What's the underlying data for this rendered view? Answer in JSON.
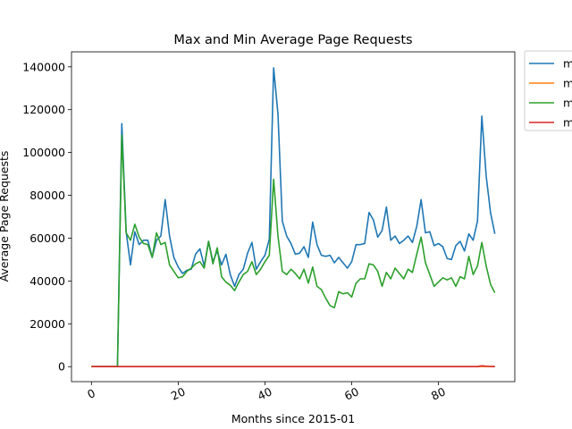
{
  "chart_data": {
    "type": "line",
    "title": "Max and Min Average Page Requests",
    "xlabel": "Months since 2015-01",
    "ylabel": "Average Page Requests",
    "xlim": [
      -4.6,
      97.6
    ],
    "ylim": [
      -7000,
      147000
    ],
    "xticks": [
      0,
      20,
      40,
      60,
      80
    ],
    "yticks": [
      0,
      20000,
      40000,
      60000,
      80000,
      100000,
      120000,
      140000
    ],
    "grid": false,
    "legend_position": "upper-right-outside",
    "series": [
      {
        "name": "m",
        "color": "#1f77b4",
        "values": [
          0,
          0,
          0,
          0,
          0,
          0,
          0,
          113500,
          63000,
          47500,
          63000,
          57000,
          59000,
          59000,
          51000,
          59000,
          61000,
          78000,
          61000,
          51000,
          46500,
          43500,
          45000,
          45500,
          52500,
          55000,
          47000,
          58500,
          49000,
          54000,
          47500,
          52500,
          43000,
          37500,
          43000,
          45500,
          53000,
          58000,
          45500,
          49000,
          52000,
          59500,
          139500,
          118000,
          68000,
          61000,
          57500,
          52500,
          53000,
          56000,
          51000,
          67500,
          57000,
          52000,
          51500,
          52000,
          48500,
          51000,
          48500,
          46000,
          49000,
          57000,
          57000,
          57500,
          72000,
          68500,
          60500,
          63500,
          74500,
          59000,
          61000,
          57500,
          59000,
          61000,
          58000,
          65500,
          78000,
          62500,
          63000,
          56500,
          57500,
          56000,
          50500,
          50000,
          56500,
          58500,
          54000,
          62000,
          59000,
          68000,
          117000,
          89000,
          72000,
          62000
        ]
      },
      {
        "name": "m",
        "color": "#ff7f0e",
        "values": [
          0,
          0,
          0,
          0,
          0,
          0,
          0,
          40,
          40,
          40,
          40,
          40,
          40,
          40,
          40,
          40,
          40,
          40,
          40,
          40,
          40,
          40,
          40,
          40,
          40,
          40,
          40,
          40,
          40,
          40,
          40,
          40,
          40,
          40,
          40,
          40,
          40,
          40,
          40,
          40,
          40,
          40,
          40,
          40,
          40,
          40,
          40,
          40,
          40,
          40,
          40,
          40,
          40,
          40,
          40,
          40,
          40,
          40,
          40,
          40,
          40,
          40,
          40,
          40,
          40,
          40,
          40,
          40,
          40,
          40,
          40,
          40,
          40,
          40,
          40,
          40,
          40,
          40,
          40,
          40,
          40,
          40,
          40,
          40,
          40,
          40,
          40,
          40,
          40,
          40,
          40,
          40,
          40,
          40
        ]
      },
      {
        "name": "m",
        "color": "#2ca02c",
        "values": [
          0,
          0,
          0,
          0,
          0,
          0,
          0,
          108000,
          62500,
          59000,
          66500,
          60500,
          57500,
          57000,
          51000,
          62500,
          57000,
          58000,
          47500,
          44500,
          41500,
          42000,
          44500,
          46000,
          48000,
          49000,
          46000,
          58500,
          48000,
          55500,
          42000,
          39500,
          38000,
          35500,
          39500,
          43000,
          44500,
          49000,
          43000,
          45500,
          49000,
          52000,
          87500,
          61000,
          44500,
          43000,
          45500,
          43500,
          41000,
          45500,
          39000,
          46500,
          37500,
          36000,
          32000,
          28500,
          27500,
          35000,
          34000,
          34500,
          32500,
          39000,
          41000,
          41000,
          48000,
          47500,
          44500,
          37500,
          44000,
          41000,
          46000,
          43500,
          41000,
          45500,
          44000,
          52500,
          60500,
          48500,
          43000,
          37500,
          39500,
          41500,
          40500,
          41500,
          37500,
          42000,
          41000,
          51500,
          43000,
          47000,
          58000,
          47000,
          38500,
          34500
        ]
      },
      {
        "name": "m",
        "color": "#d62728",
        "values": [
          0,
          0,
          0,
          0,
          0,
          0,
          0,
          30,
          30,
          30,
          30,
          30,
          30,
          30,
          30,
          30,
          30,
          30,
          30,
          30,
          30,
          30,
          30,
          30,
          30,
          30,
          30,
          30,
          30,
          30,
          30,
          30,
          30,
          30,
          30,
          30,
          30,
          30,
          30,
          30,
          30,
          30,
          30,
          30,
          30,
          30,
          30,
          30,
          30,
          30,
          30,
          30,
          30,
          30,
          30,
          30,
          30,
          30,
          30,
          30,
          30,
          30,
          30,
          30,
          30,
          30,
          30,
          30,
          30,
          30,
          30,
          30,
          30,
          30,
          30,
          30,
          30,
          30,
          30,
          30,
          30,
          30,
          30,
          30,
          30,
          30,
          30,
          30,
          30,
          30,
          400,
          200,
          100,
          60
        ]
      }
    ]
  }
}
